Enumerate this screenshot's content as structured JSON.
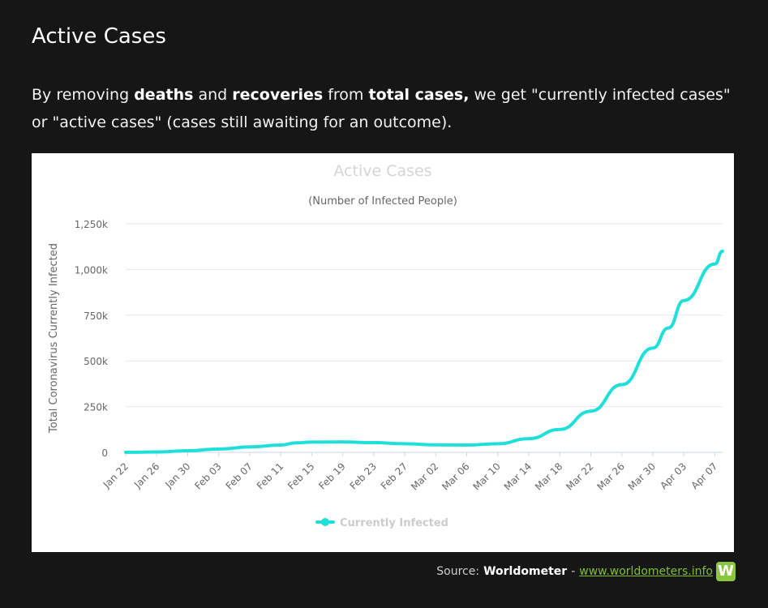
{
  "page": {
    "heading": "Active Cases",
    "lead": {
      "part1": "By removing ",
      "bold1": "deaths",
      "part2": " and ",
      "bold2": "recoveries",
      "part3": " from ",
      "bold3": "total cases,",
      "part4": " we get \"currently infected cases\" or \"active cases\" (cases still awaiting for an outcome)."
    }
  },
  "source": {
    "label": "Source:",
    "brand": "Worldometer",
    "separator": "-",
    "link_text": "www.worldometers.info",
    "logo_letter": "W"
  },
  "colors": {
    "series": "#1fe0d8",
    "background": "#161616",
    "link": "#7fbf2a",
    "logo": "#8cc63f"
  },
  "chart_data": {
    "type": "line",
    "title": "Active Cases",
    "subtitle": "(Number of Infected People)",
    "ylabel": "Total Coronavirus Currently Infected",
    "xlabel": "",
    "ylim": [
      0,
      1250000
    ],
    "y_ticks": [
      0,
      250000,
      500000,
      750000,
      1000000,
      1250000
    ],
    "y_tick_labels": [
      "0",
      "250k",
      "500k",
      "750k",
      "1,000k",
      "1,250k"
    ],
    "x_tick_labels": [
      "Jan 22",
      "Jan 26",
      "Jan 30",
      "Feb 03",
      "Feb 07",
      "Feb 11",
      "Feb 15",
      "Feb 19",
      "Feb 23",
      "Feb 27",
      "Mar 02",
      "Mar 06",
      "Mar 10",
      "Mar 14",
      "Mar 18",
      "Mar 22",
      "Mar 26",
      "Mar 30",
      "Apr 03",
      "Apr 07"
    ],
    "grid": true,
    "legend_position": "bottom",
    "series": [
      {
        "name": "Currently Infected",
        "values": [
          {
            "x": "Jan 22",
            "y": 500
          },
          {
            "x": "Jan 26",
            "y": 2000
          },
          {
            "x": "Jan 30",
            "y": 9000
          },
          {
            "x": "Feb 03",
            "y": 18000
          },
          {
            "x": "Feb 07",
            "y": 30000
          },
          {
            "x": "Feb 11",
            "y": 40000
          },
          {
            "x": "Feb 13",
            "y": 52000
          },
          {
            "x": "Feb 15",
            "y": 56000
          },
          {
            "x": "Feb 19",
            "y": 57000
          },
          {
            "x": "Feb 23",
            "y": 53000
          },
          {
            "x": "Feb 27",
            "y": 47000
          },
          {
            "x": "Mar 02",
            "y": 41000
          },
          {
            "x": "Mar 06",
            "y": 40000
          },
          {
            "x": "Mar 10",
            "y": 47000
          },
          {
            "x": "Mar 14",
            "y": 75000
          },
          {
            "x": "Mar 18",
            "y": 125000
          },
          {
            "x": "Mar 22",
            "y": 225000
          },
          {
            "x": "Mar 26",
            "y": 370000
          },
          {
            "x": "Mar 30",
            "y": 570000
          },
          {
            "x": "Apr 01",
            "y": 680000
          },
          {
            "x": "Apr 03",
            "y": 830000
          },
          {
            "x": "Apr 07",
            "y": 1030000
          },
          {
            "x": "Apr 08",
            "y": 1100000
          }
        ]
      }
    ]
  }
}
